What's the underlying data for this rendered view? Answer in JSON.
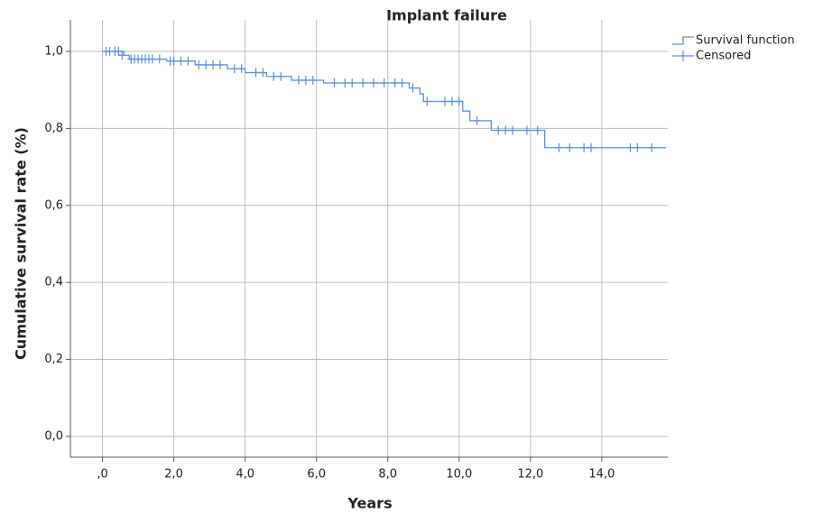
{
  "chart_data": {
    "type": "kaplan-meier",
    "title": "Implant failure",
    "x_label": "Years",
    "y_label": "Cumulative survival rate (%)",
    "xlim": [
      -0.9,
      15.85
    ],
    "ylim": [
      -0.054,
      1.082
    ],
    "xticks": [
      {
        "value": 0,
        "label": ",0"
      },
      {
        "value": 2,
        "label": "2,0"
      },
      {
        "value": 4,
        "label": "4,0"
      },
      {
        "value": 6,
        "label": "6,0"
      },
      {
        "value": 8,
        "label": "8,0"
      },
      {
        "value": 10,
        "label": "10,0"
      },
      {
        "value": 12,
        "label": "12,0"
      },
      {
        "value": 14,
        "label": "14,0"
      }
    ],
    "yticks": [
      {
        "value": 0,
        "label": "0,0"
      },
      {
        "value": 0.2,
        "label": "0,2"
      },
      {
        "value": 0.4,
        "label": "0,4"
      },
      {
        "value": 0.6,
        "label": "0,6"
      },
      {
        "value": 0.8,
        "label": "0,8"
      },
      {
        "value": 1,
        "label": "1,0"
      }
    ],
    "grid": true,
    "legend": "top-right",
    "series": [
      {
        "name": "Survival function",
        "color": "#5b8fdb",
        "x": [
          0,
          0.6,
          0.75,
          1.8,
          2.6,
          3.5,
          4.0,
          4.6,
          5.3,
          6.2,
          8.6,
          8.9,
          9.0,
          10.1,
          10.3,
          10.9,
          12.4,
          15.8
        ],
        "values": [
          1.0,
          0.99,
          0.98,
          0.975,
          0.965,
          0.955,
          0.945,
          0.935,
          0.925,
          0.918,
          0.905,
          0.89,
          0.87,
          0.845,
          0.82,
          0.795,
          0.75,
          0.75
        ]
      },
      {
        "name": "Censored",
        "color": "#5b8fdb",
        "x": [
          0.1,
          0.2,
          0.35,
          0.45,
          0.55,
          0.8,
          0.9,
          1.0,
          1.1,
          1.2,
          1.3,
          1.4,
          1.6,
          1.9,
          2.0,
          2.2,
          2.4,
          2.7,
          2.9,
          3.1,
          3.3,
          3.7,
          3.9,
          4.3,
          4.5,
          4.8,
          5.0,
          5.5,
          5.7,
          5.9,
          6.5,
          6.8,
          7.0,
          7.3,
          7.6,
          7.9,
          8.2,
          8.4,
          8.7,
          9.1,
          9.6,
          9.8,
          10.0,
          10.5,
          11.1,
          11.3,
          11.5,
          11.9,
          12.2,
          12.8,
          13.1,
          13.5,
          13.7,
          14.8,
          15.0,
          15.4
        ],
        "values": [
          1.0,
          1.0,
          1.0,
          1.0,
          0.99,
          0.98,
          0.98,
          0.98,
          0.98,
          0.98,
          0.98,
          0.98,
          0.98,
          0.975,
          0.975,
          0.975,
          0.975,
          0.965,
          0.965,
          0.965,
          0.965,
          0.955,
          0.955,
          0.945,
          0.945,
          0.935,
          0.935,
          0.925,
          0.925,
          0.925,
          0.918,
          0.918,
          0.918,
          0.918,
          0.918,
          0.918,
          0.918,
          0.918,
          0.905,
          0.87,
          0.87,
          0.87,
          0.87,
          0.82,
          0.795,
          0.795,
          0.795,
          0.795,
          0.795,
          0.75,
          0.75,
          0.75,
          0.75,
          0.75,
          0.75,
          0.75
        ]
      }
    ]
  }
}
